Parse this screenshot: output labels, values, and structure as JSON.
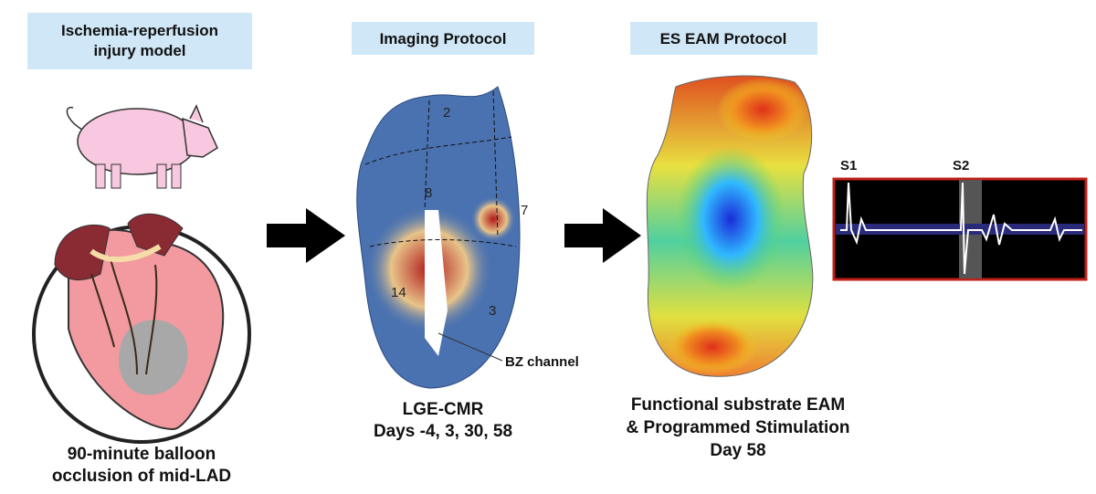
{
  "panels": [
    {
      "header": [
        "Ischemia-reperfusion",
        "injury model"
      ],
      "caption": [
        "90-minute balloon",
        "occlusion of mid-LAD"
      ]
    },
    {
      "header": [
        "Imaging Protocol"
      ],
      "caption": [
        "LGE-CMR",
        "Days -4, 3, 30, 58"
      ],
      "annotation": "BZ channel",
      "segments": [
        "2",
        "8",
        "7",
        "14",
        "3"
      ]
    },
    {
      "header": [
        "ES EAM Protocol"
      ],
      "caption": [
        "Functional substrate EAM",
        "& Programmed Stimulation",
        "Day 58"
      ],
      "stimuli": [
        "S1",
        "S2"
      ]
    }
  ]
}
